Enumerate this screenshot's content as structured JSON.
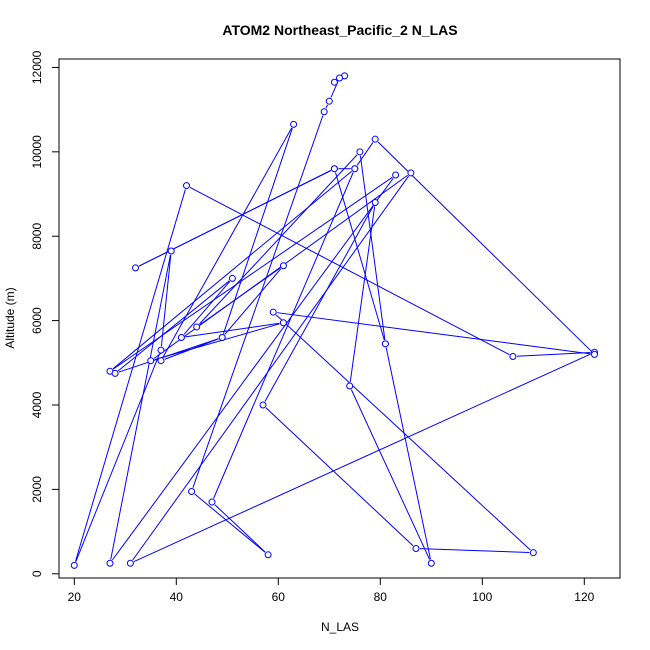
{
  "chart_data": {
    "type": "line",
    "title": "ATOM2 Northeast_Pacific_2 N_LAS",
    "xlabel": "N_LAS",
    "ylabel": "Altitude (m)",
    "xlim": [
      17,
      127
    ],
    "ylim": [
      -100,
      12200
    ],
    "xticks": [
      20,
      40,
      60,
      80,
      100,
      120
    ],
    "yticks": [
      0,
      2000,
      4000,
      6000,
      8000,
      10000,
      12000
    ],
    "grid": false,
    "legend": "none",
    "color": "#0000ff",
    "series": [
      {
        "points": [
          [
            71,
            11650
          ],
          [
            73,
            11800
          ],
          [
            72,
            11750
          ],
          [
            70,
            11200
          ],
          [
            69,
            10950
          ],
          [
            43,
            1950
          ],
          [
            58,
            450
          ],
          [
            47,
            1700
          ],
          [
            75,
            9600
          ],
          [
            27,
            4800
          ],
          [
            83,
            9450
          ],
          [
            27,
            250
          ],
          [
            39,
            7650
          ],
          [
            37,
            5300
          ],
          [
            20,
            200
          ],
          [
            42,
            9200
          ],
          [
            106,
            5150
          ],
          [
            122,
            5250
          ],
          [
            31,
            250
          ],
          [
            86,
            9500
          ],
          [
            35,
            5050
          ],
          [
            61,
            5950
          ],
          [
            41,
            5600
          ],
          [
            51,
            7000
          ],
          [
            28,
            4750
          ],
          [
            49,
            5600
          ],
          [
            63,
            10650
          ],
          [
            37,
            5050
          ],
          [
            49,
            5600
          ],
          [
            61,
            7300
          ],
          [
            44,
            5850
          ],
          [
            76,
            10000
          ],
          [
            81,
            5450
          ],
          [
            71,
            9600
          ],
          [
            32,
            7250
          ],
          [
            71,
            9600
          ],
          [
            75,
            9600
          ],
          [
            79,
            10300
          ],
          [
            122,
            5200
          ],
          [
            59,
            6200
          ],
          [
            110,
            500
          ],
          [
            87,
            600
          ],
          [
            57,
            4000
          ],
          [
            79,
            8800
          ],
          [
            74,
            4450
          ],
          [
            90,
            250
          ],
          [
            81,
            5450
          ]
        ]
      }
    ]
  }
}
